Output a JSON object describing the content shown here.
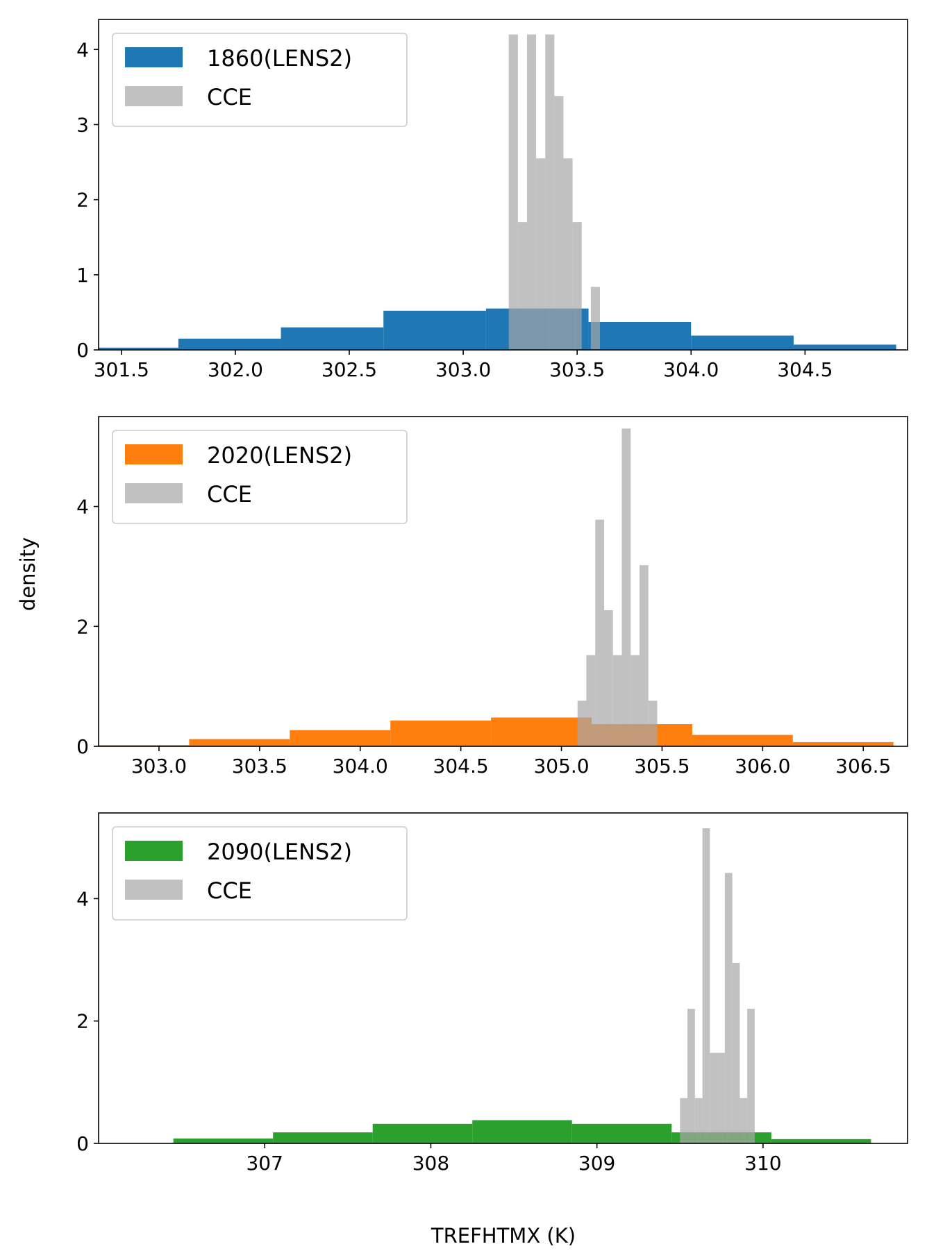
{
  "figure": {
    "ylabel": "density",
    "xlabel": "TREFHTMX (K)"
  },
  "colors": {
    "cce": "#a6a6a6",
    "c1860": "#1f77b4",
    "c2020": "#ff7f0e",
    "c2090": "#2ca02c"
  },
  "chart_data": [
    {
      "type": "bar",
      "title": "",
      "xlabel": "",
      "ylabel": "density",
      "xlim": [
        301.4,
        304.95
      ],
      "ylim": [
        0,
        4.4
      ],
      "xticks": [
        301.5,
        302.0,
        302.5,
        303.0,
        303.5,
        304.0,
        304.5
      ],
      "xtick_labels": [
        "301.5",
        "302.0",
        "302.5",
        "303.0",
        "303.5",
        "304.0",
        "304.5"
      ],
      "yticks": [
        0,
        1,
        2,
        3,
        4
      ],
      "ytick_labels": [
        "0",
        "1",
        "2",
        "3",
        "4"
      ],
      "legend": "upper-left",
      "series": [
        {
          "name": "1860(LENS2)",
          "color_key": "c1860",
          "bin_edges": [
            301.3,
            301.75,
            302.2,
            302.65,
            303.1,
            303.55,
            304.0,
            304.45,
            304.9
          ],
          "values": [
            0.03,
            0.15,
            0.3,
            0.52,
            0.55,
            0.37,
            0.19,
            0.07
          ]
        },
        {
          "name": "CCE",
          "color_key": "cce",
          "bin_edges": [
            303.2,
            303.24,
            303.28,
            303.32,
            303.36,
            303.4,
            303.44,
            303.48,
            303.52,
            303.56,
            303.6
          ],
          "values": [
            4.2,
            1.7,
            4.2,
            2.55,
            4.2,
            3.38,
            2.55,
            1.7,
            0.0,
            0.84
          ]
        }
      ]
    },
    {
      "type": "bar",
      "title": "",
      "xlabel": "",
      "ylabel": "density",
      "xlim": [
        302.7,
        306.72
      ],
      "ylim": [
        0,
        5.5
      ],
      "xticks": [
        303.0,
        303.5,
        304.0,
        304.5,
        305.0,
        305.5,
        306.0,
        306.5
      ],
      "xtick_labels": [
        "303.0",
        "303.5",
        "304.0",
        "304.5",
        "305.0",
        "305.5",
        "306.0",
        "306.5"
      ],
      "yticks": [
        0,
        2,
        4
      ],
      "ytick_labels": [
        "0",
        "2",
        "4"
      ],
      "legend": "upper-left",
      "series": [
        {
          "name": "2020(LENS2)",
          "color_key": "c2020",
          "bin_edges": [
            302.65,
            303.15,
            303.65,
            304.15,
            304.65,
            305.15,
            305.65,
            306.15,
            306.65
          ],
          "values": [
            0.02,
            0.12,
            0.27,
            0.43,
            0.48,
            0.37,
            0.19,
            0.07
          ]
        },
        {
          "name": "CCE",
          "color_key": "cce",
          "bin_edges": [
            305.08,
            305.124,
            305.168,
            305.212,
            305.256,
            305.3,
            305.344,
            305.388,
            305.432,
            305.476,
            305.52
          ],
          "values": [
            0.76,
            1.52,
            3.78,
            2.27,
            1.52,
            5.3,
            1.52,
            3.02,
            0.76,
            0.0
          ]
        }
      ]
    },
    {
      "type": "bar",
      "title": "",
      "xlabel": "TREFHTMX (K)",
      "ylabel": "density",
      "xlim": [
        306.0,
        310.87
      ],
      "ylim": [
        0,
        5.4
      ],
      "xticks": [
        307,
        308,
        309,
        310
      ],
      "xtick_labels": [
        "307",
        "308",
        "309",
        "310"
      ],
      "yticks": [
        0,
        2,
        4
      ],
      "ytick_labels": [
        "0",
        "2",
        "4"
      ],
      "legend": "upper-left",
      "series": [
        {
          "name": "2090(LENS2)",
          "color_key": "c2090",
          "bin_edges": [
            306.45,
            307.05,
            307.65,
            308.25,
            308.85,
            309.45,
            310.05,
            310.65
          ],
          "values": [
            0.08,
            0.18,
            0.32,
            0.38,
            0.32,
            0.18,
            0.07
          ]
        },
        {
          "name": "CCE",
          "color_key": "cce",
          "bin_edges": [
            309.5,
            309.545,
            309.59,
            309.635,
            309.68,
            309.725,
            309.77,
            309.815,
            309.86,
            309.905,
            309.95
          ],
          "values": [
            0.74,
            2.2,
            0.74,
            5.15,
            1.48,
            1.48,
            4.42,
            2.95,
            0.74,
            2.2
          ]
        }
      ]
    }
  ]
}
